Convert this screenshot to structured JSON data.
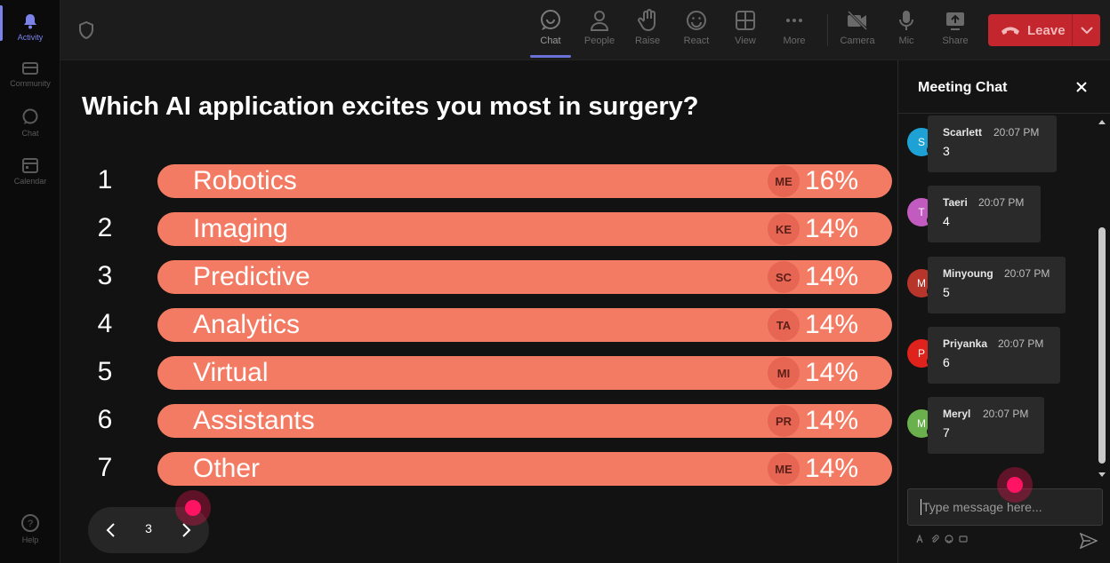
{
  "rail": {
    "items": [
      {
        "label": "Activity",
        "icon": "bell-icon"
      },
      {
        "label": "Community",
        "icon": "community-icon"
      },
      {
        "label": "Chat",
        "icon": "chat-icon"
      },
      {
        "label": "Calendar",
        "icon": "calendar-icon"
      }
    ],
    "help_label": "Help"
  },
  "toolbar": {
    "chat": "Chat",
    "people": "People",
    "raise": "Raise",
    "react": "React",
    "view": "View",
    "more": "More",
    "camera": "Camera",
    "mic": "Mic",
    "share": "Share",
    "leave": "Leave"
  },
  "poll": {
    "question": "Which AI application excites you most in surgery?",
    "options": [
      {
        "num": "1",
        "label": "Robotics",
        "badge": "ME",
        "percent": "16%"
      },
      {
        "num": "2",
        "label": "Imaging",
        "badge": "KE",
        "percent": "14%"
      },
      {
        "num": "3",
        "label": "Predictive",
        "badge": "SC",
        "percent": "14%"
      },
      {
        "num": "4",
        "label": "Analytics",
        "badge": "TA",
        "percent": "14%"
      },
      {
        "num": "5",
        "label": "Virtual",
        "badge": "MI",
        "percent": "14%"
      },
      {
        "num": "6",
        "label": "Assistants",
        "badge": "PR",
        "percent": "14%"
      },
      {
        "num": "7",
        "label": "Other",
        "badge": "ME",
        "percent": "14%"
      }
    ],
    "page": "3"
  },
  "chat": {
    "title": "Meeting Chat",
    "messages": [
      {
        "initial": "S",
        "name": "Scarlett",
        "time": "20:07 PM",
        "text": "3",
        "color": "#1ea2d6"
      },
      {
        "initial": "T",
        "name": "Taeri",
        "time": "20:07 PM",
        "text": "4",
        "color": "#c25bbf"
      },
      {
        "initial": "M",
        "name": "Minyoung",
        "time": "20:07 PM",
        "text": "5",
        "color": "#b8352c"
      },
      {
        "initial": "P",
        "name": "Priyanka",
        "time": "20:07 PM",
        "text": "6",
        "color": "#e0221d"
      },
      {
        "initial": "M",
        "name": "Meryl",
        "time": "20:07 PM",
        "text": "7",
        "color": "#6ab04c"
      }
    ],
    "input_placeholder": "Type message here..."
  },
  "colors": {
    "accent": "#6a72d8",
    "poll_bar": "#f47b63",
    "leave": "#c4262e",
    "pointer": "#ff1464"
  }
}
